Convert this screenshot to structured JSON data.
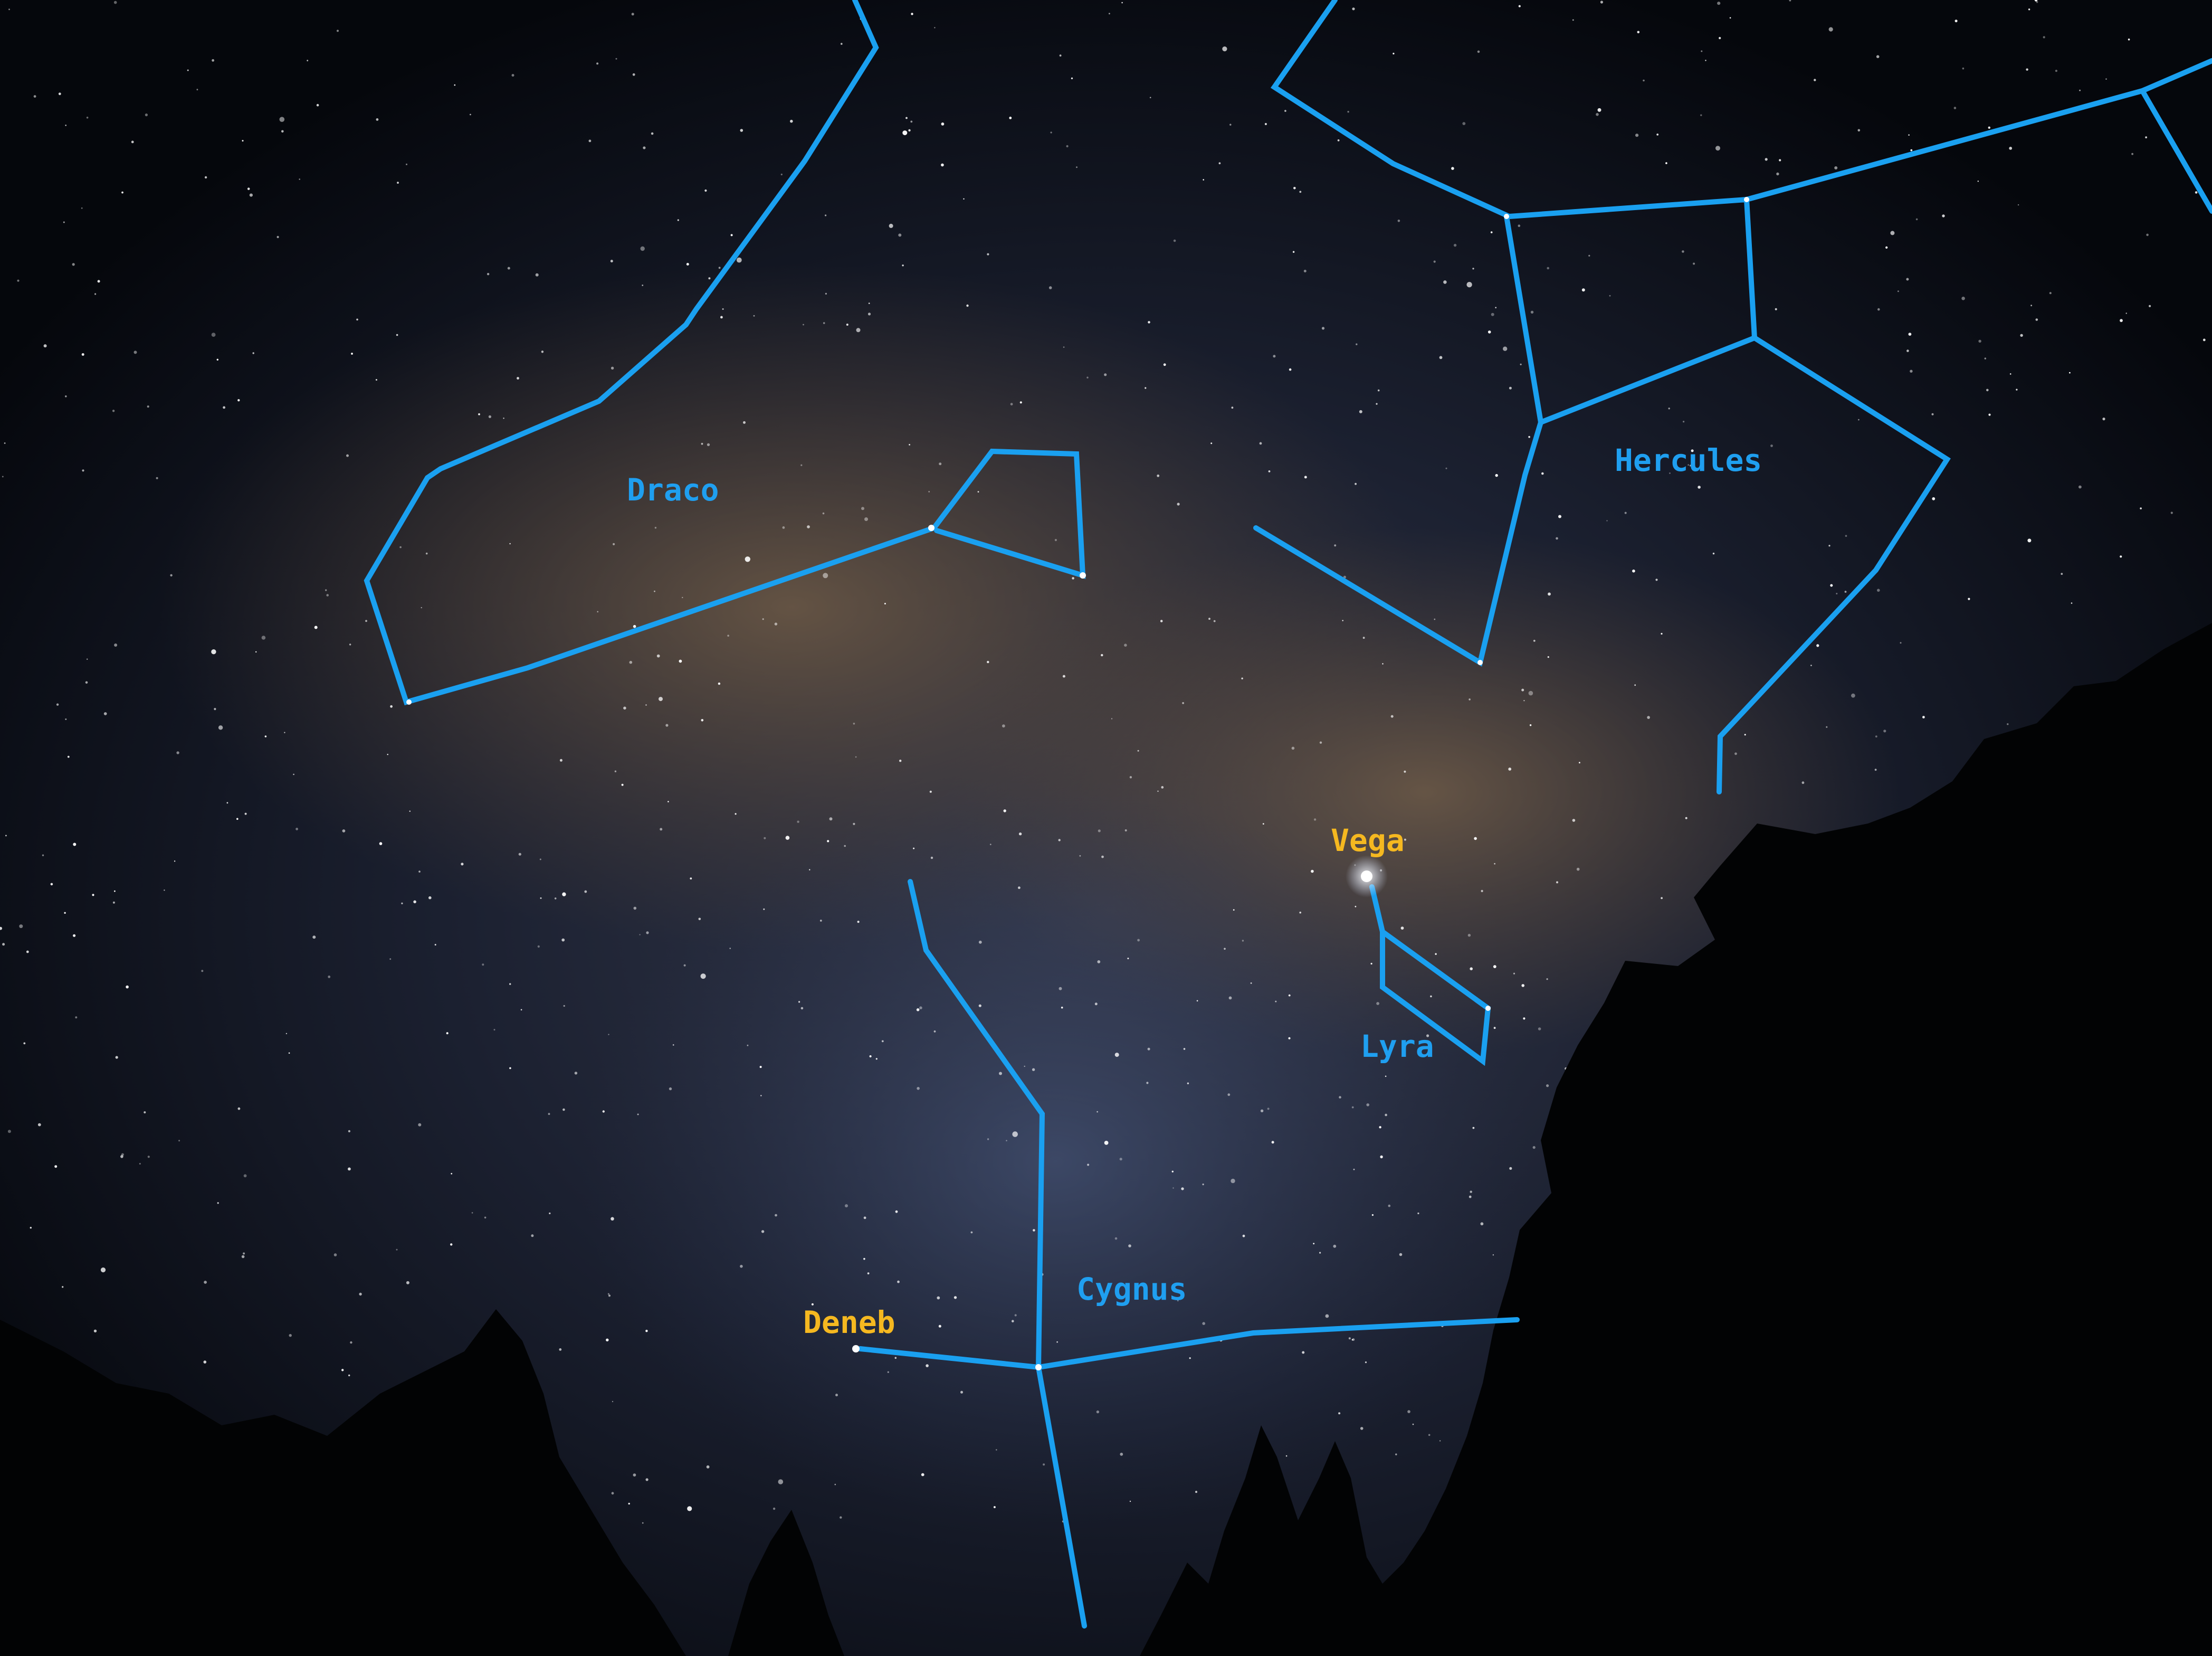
{
  "colors": {
    "constellation_line": "#1aa0f0",
    "constellation_label": "#1f9ff0",
    "star_label": "#f5b820",
    "sky": "#0b1020"
  },
  "labels": {
    "draco": "Draco",
    "hercules": "Hercules",
    "vega": "Vega",
    "lyra": "Lyra",
    "cygnus": "Cygnus",
    "deneb": "Deneb"
  }
}
